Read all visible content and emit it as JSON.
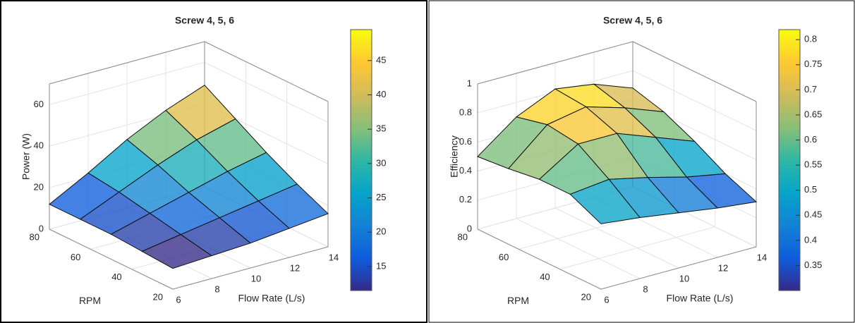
{
  "chart_data": [
    {
      "type": "surface",
      "title": "Screw 4, 5, 6",
      "xlabel": "Flow Rate (L/s)",
      "ylabel": "RPM",
      "zlabel": "Power (W)",
      "x": [
        6,
        8,
        10,
        12,
        14
      ],
      "y": [
        20,
        35,
        50,
        65,
        80
      ],
      "z": [
        [
          10,
          11,
          12,
          14,
          16
        ],
        [
          11,
          14,
          17,
          20,
          23
        ],
        [
          12,
          17,
          22,
          27,
          31
        ],
        [
          12,
          20,
          28,
          35,
          40
        ],
        [
          12,
          22,
          33,
          42,
          49
        ]
      ],
      "xlim": [
        6,
        14
      ],
      "ylim": [
        20,
        80
      ],
      "zlim": [
        0,
        70
      ],
      "xticks": [
        6,
        8,
        10,
        12,
        14
      ],
      "yticks": [
        20,
        40,
        60,
        80
      ],
      "zticks": [
        0,
        20,
        40,
        60
      ],
      "clim": [
        11.5,
        49.5
      ],
      "cticks": [
        15,
        20,
        25,
        30,
        35,
        40,
        45
      ],
      "colormap": [
        "#352a87",
        "#0f5cdd",
        "#1481d6",
        "#06a4ca",
        "#2eb7a4",
        "#87bf77",
        "#d1bb59",
        "#fec832",
        "#f9fb0e"
      ],
      "grid": true
    },
    {
      "type": "surface",
      "title": "Screw 4, 5, 6",
      "xlabel": "Flow Rate (L/s)",
      "ylabel": "RPM",
      "zlabel": "Efficiency",
      "x": [
        6,
        8,
        10,
        12,
        14
      ],
      "y": [
        20,
        35,
        50,
        65,
        80
      ],
      "z": [
        [
          0.45,
          0.42,
          0.38,
          0.34,
          0.31
        ],
        [
          0.55,
          0.58,
          0.52,
          0.45,
          0.4
        ],
        [
          0.55,
          0.72,
          0.72,
          0.62,
          0.52
        ],
        [
          0.52,
          0.75,
          0.8,
          0.72,
          0.62
        ],
        [
          0.5,
          0.7,
          0.82,
          0.78,
          0.68
        ]
      ],
      "xlim": [
        6,
        14
      ],
      "ylim": [
        20,
        80
      ],
      "zlim": [
        0,
        1
      ],
      "xticks": [
        6,
        8,
        10,
        12,
        14
      ],
      "yticks": [
        20,
        40,
        60,
        80
      ],
      "zticks": [
        0,
        0.2,
        0.4,
        0.6,
        0.8,
        1
      ],
      "clim": [
        0.3,
        0.82
      ],
      "cticks": [
        0.35,
        0.4,
        0.45,
        0.5,
        0.55,
        0.6,
        0.65,
        0.7,
        0.75,
        0.8
      ],
      "colormap": [
        "#352a87",
        "#0f5cdd",
        "#1481d6",
        "#06a4ca",
        "#2eb7a4",
        "#87bf77",
        "#d1bb59",
        "#fec832",
        "#f9fb0e"
      ],
      "grid": true
    }
  ]
}
